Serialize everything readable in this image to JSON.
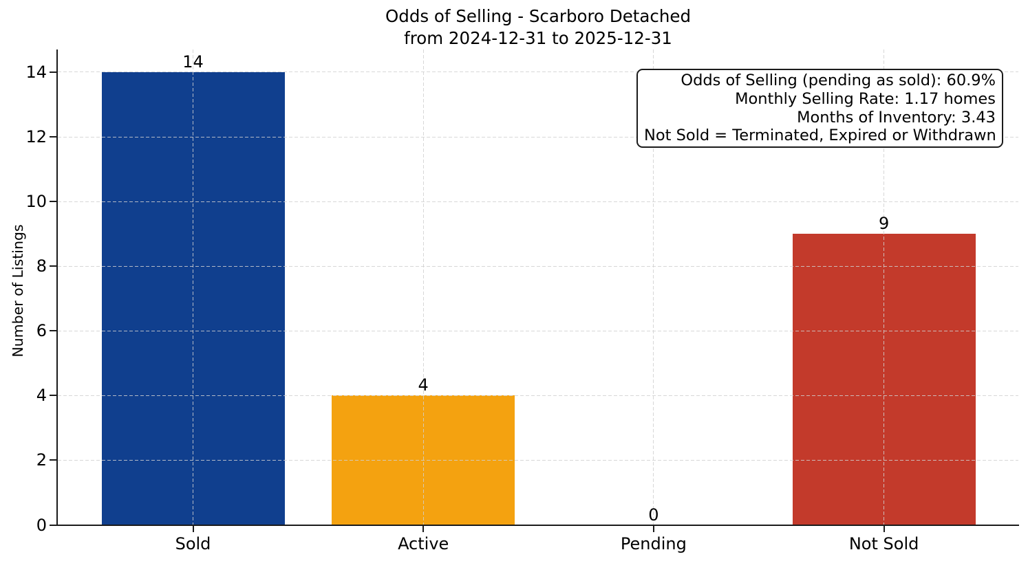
{
  "chart_data": {
    "type": "bar",
    "title": "Odds of Selling - Scarboro Detached",
    "subtitle": "from 2024-12-31 to 2025-12-31",
    "categories": [
      "Sold",
      "Active",
      "Pending",
      "Not Sold"
    ],
    "values": [
      14,
      4,
      0,
      9
    ],
    "value_labels": [
      "14",
      "4",
      "0",
      "9"
    ],
    "bar_colors": {
      "Sold": "#103f8e",
      "Active": "#f4a210",
      "Pending": null,
      "Not Sold": "#c33a2b"
    },
    "xlabel": "",
    "ylabel": "Number of Listings",
    "yticks": [
      0,
      2,
      4,
      6,
      8,
      10,
      12,
      14
    ],
    "ylim": [
      0,
      14.7
    ],
    "grid": "dashed, horizontal at y-ticks and vertical at category centers, drawn over bars",
    "legend": "none",
    "annotation": {
      "position": "top-right",
      "align": "right",
      "lines": [
        "Odds of Selling (pending as sold): 60.9%",
        "Monthly Selling Rate: 1.17 homes",
        "Months of Inventory: 3.43",
        "Not Sold = Terminated, Expired or Withdrawn"
      ]
    },
    "colors": {
      "background": "#ffffff",
      "axis": "#1a1a1a",
      "grid": "#d0d0d0",
      "text": "#000000"
    }
  }
}
